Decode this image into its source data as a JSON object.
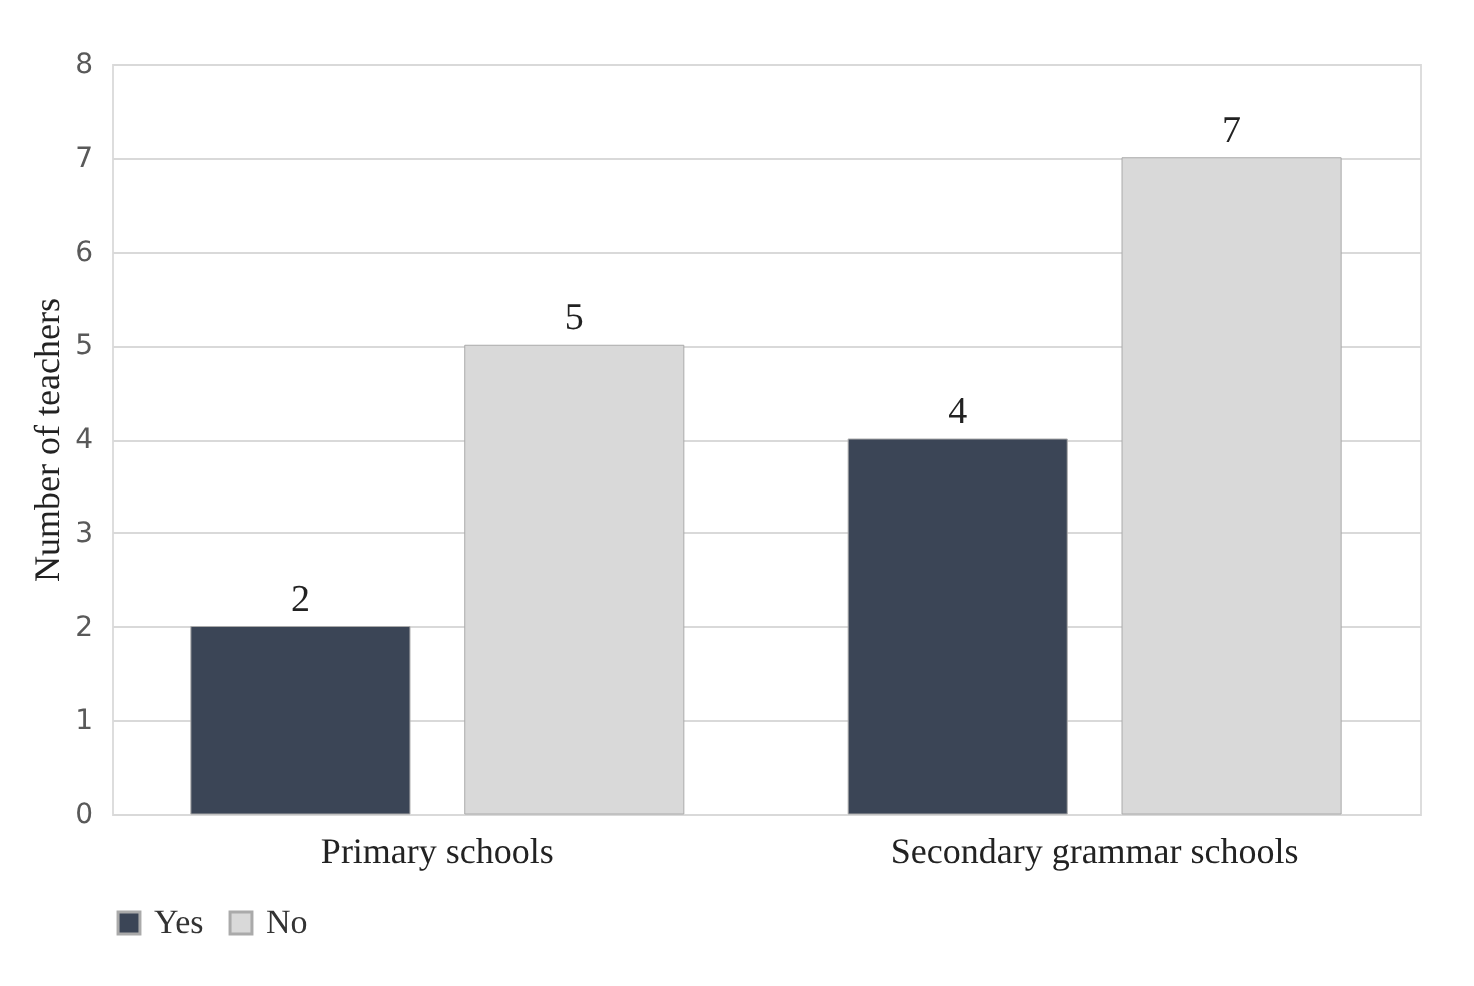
{
  "chart_data": {
    "type": "bar",
    "ylabel": "Number of teachers",
    "categories": [
      "Primary schools",
      "Secondary grammar schools"
    ],
    "series": [
      {
        "name": "Yes",
        "color": "#3b4556",
        "values": [
          2,
          4
        ]
      },
      {
        "name": "No",
        "color": "#d9d9d9",
        "values": [
          5,
          7
        ]
      }
    ],
    "ylim": [
      0,
      8
    ],
    "yticks": [
      0,
      1,
      2,
      3,
      4,
      5,
      6,
      7,
      8
    ],
    "grid": "y",
    "legend": "bottom",
    "data_labels": true
  }
}
